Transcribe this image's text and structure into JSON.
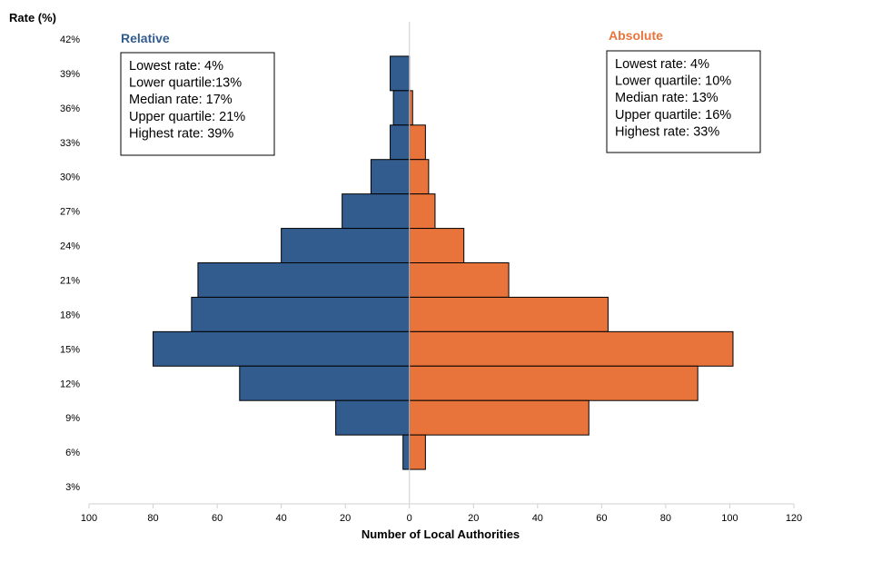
{
  "chart_data": {
    "type": "bar",
    "orientation": "horizontal-diverging",
    "ylabel": "Rate (%)",
    "xlabel": "Number of Local Authorities",
    "rate_ticks": [
      "42%",
      "39%",
      "36%",
      "33%",
      "30%",
      "27%",
      "24%",
      "21%",
      "18%",
      "15%",
      "12%",
      "9%",
      "6%",
      "3%"
    ],
    "count_ticks": [
      "100",
      "80",
      "60",
      "40",
      "20",
      "0",
      "20",
      "40",
      "60",
      "80",
      "100",
      "120"
    ],
    "xlim": [
      -100,
      120
    ],
    "ylim": [
      1.5,
      43.5
    ],
    "categories": [
      39,
      36,
      33,
      30,
      27,
      24,
      21,
      18,
      15,
      12,
      9,
      6
    ],
    "series": [
      {
        "name": "Relative",
        "color": "#335c8e",
        "direction": "left",
        "values": [
          6,
          5,
          6,
          12,
          21,
          40,
          66,
          68,
          80,
          53,
          23,
          2
        ],
        "stats": [
          "Lowest rate: 4%",
          "Lower quartile:13%",
          "Median rate: 17%",
          "Upper quartile: 21%",
          "Highest rate: 39%"
        ]
      },
      {
        "name": "Absolute",
        "color": "#e8743b",
        "direction": "right",
        "values": [
          0,
          1,
          5,
          6,
          8,
          17,
          31,
          62,
          101,
          90,
          56,
          5
        ],
        "stats": [
          "Lowest rate: 4%",
          "Lower quartile: 10%",
          "Median rate: 13%",
          "Upper quartile: 16%",
          "Highest rate: 33%"
        ]
      }
    ],
    "grid": false
  }
}
